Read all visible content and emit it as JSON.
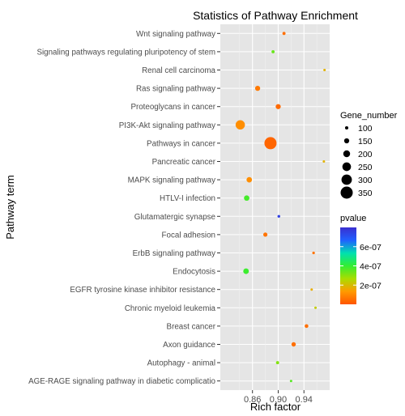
{
  "chart_data": {
    "type": "scatter",
    "title": "Statistics of Pathway Enrichment",
    "xlabel": "Rich factor",
    "ylabel": "Pathway term",
    "xlim": [
      0.81,
      0.98
    ],
    "xticks": [
      0.86,
      0.9,
      0.94
    ],
    "xtick_labels": [
      "0.86",
      "0.90",
      "0.94"
    ],
    "grid": true,
    "legend_placement": "right",
    "size_legend": {
      "title": "Gene_number",
      "values": [
        100,
        150,
        200,
        250,
        300,
        350
      ],
      "labels": [
        "100",
        "150",
        "200",
        "250",
        "300",
        "350"
      ]
    },
    "color_legend": {
      "title": "pvalue",
      "min": 0,
      "max": 8e-07,
      "ticks": [
        2e-07,
        4e-07,
        6e-07
      ],
      "tick_labels": [
        "2e-07",
        "4e-07",
        "6e-07"
      ],
      "colors": [
        "#ff5500",
        "#ff9a00",
        "#aadd00",
        "#33ee33",
        "#00e0b0",
        "#2060ff",
        "#3a2fd0"
      ]
    },
    "points": [
      {
        "term": "Wnt signaling pathway",
        "rich_factor": 0.909,
        "gene_number": 95,
        "pvalue": 5e-08
      },
      {
        "term": "Signaling pathways regulating pluripotency of stem",
        "rich_factor": 0.892,
        "gene_number": 95,
        "pvalue": 3.4e-07
      },
      {
        "term": "Renal cell carcinoma",
        "rich_factor": 0.972,
        "gene_number": 75,
        "pvalue": 1.8e-07
      },
      {
        "term": "Ras signaling pathway",
        "rich_factor": 0.868,
        "gene_number": 150,
        "pvalue": 7e-08
      },
      {
        "term": "Proteoglycans in cancer",
        "rich_factor": 0.9,
        "gene_number": 150,
        "pvalue": 4e-08
      },
      {
        "term": "PI3K-Akt signaling pathway",
        "rich_factor": 0.841,
        "gene_number": 270,
        "pvalue": 1.1e-07
      },
      {
        "term": "Pathways in cancer",
        "rich_factor": 0.888,
        "gene_number": 350,
        "pvalue": 3e-08
      },
      {
        "term": "Pancreatic cancer",
        "rich_factor": 0.971,
        "gene_number": 75,
        "pvalue": 1.8e-07
      },
      {
        "term": "MAPK signaling pathway",
        "rich_factor": 0.855,
        "gene_number": 160,
        "pvalue": 1.1e-07
      },
      {
        "term": "HTLV-I infection",
        "rich_factor": 0.851,
        "gene_number": 160,
        "pvalue": 3.8e-07
      },
      {
        "term": "Glutamatergic synapse",
        "rich_factor": 0.901,
        "gene_number": 85,
        "pvalue": 7.5e-07
      },
      {
        "term": "Focal adhesion",
        "rich_factor": 0.88,
        "gene_number": 125,
        "pvalue": 6e-08
      },
      {
        "term": "ErbB signaling pathway",
        "rich_factor": 0.955,
        "gene_number": 80,
        "pvalue": 6e-08
      },
      {
        "term": "Endocytosis",
        "rich_factor": 0.85,
        "gene_number": 165,
        "pvalue": 3.9e-07
      },
      {
        "term": "EGFR tyrosine kinase inhibitor resistance",
        "rich_factor": 0.952,
        "gene_number": 75,
        "pvalue": 1.7e-07
      },
      {
        "term": "Chronic myeloid leukemia",
        "rich_factor": 0.958,
        "gene_number": 75,
        "pvalue": 2.3e-07
      },
      {
        "term": "Breast cancer",
        "rich_factor": 0.944,
        "gene_number": 110,
        "pvalue": 5e-08
      },
      {
        "term": "Axon guidance",
        "rich_factor": 0.924,
        "gene_number": 130,
        "pvalue": 5e-08
      },
      {
        "term": "Autophagy - animal",
        "rich_factor": 0.899,
        "gene_number": 95,
        "pvalue": 3.1e-07
      },
      {
        "term": "AGE-RAGE signaling pathway in diabetic complicatio",
        "rich_factor": 0.92,
        "gene_number": 75,
        "pvalue": 3.6e-07
      }
    ]
  }
}
